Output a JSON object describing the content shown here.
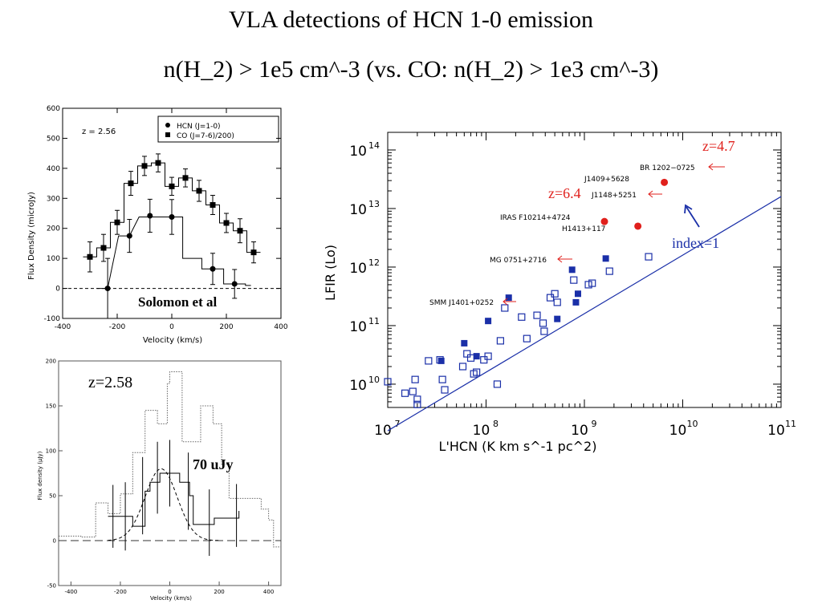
{
  "slide": {
    "title_line1": "VLA detections of HCN 1-0 emission",
    "title_line2": "n(H_2) > 1e5 cm^-3   (vs. CO:  n(H_2) > 1e3 cm^-3)"
  },
  "chart_data": [
    {
      "type": "line",
      "style": "histogram-steps with errorbars",
      "xlabel": "Velocity (km/s)",
      "ylabel": "Flux Density (microJy)",
      "xlim": [
        -400,
        400
      ],
      "ylim": [
        -100,
        600
      ],
      "x_ticks": [
        -400,
        -200,
        0,
        200,
        400
      ],
      "y_ticks": [
        -100,
        0,
        100,
        200,
        300,
        400,
        500,
        600
      ],
      "annotation": "z = 2.56",
      "overlay_text": "Solomon et al",
      "legend": {
        "placement": "top-right",
        "entries": [
          "HCN (J=1-0)",
          "CO (J=7-6)/200)"
        ]
      },
      "series": [
        {
          "name": "HCN (J=1-0)",
          "marker": "circle",
          "x": [
            -235,
            -155,
            -80,
            0,
            150,
            230
          ],
          "y": [
            0,
            175,
            242,
            238,
            65,
            15
          ],
          "err": [
            100,
            55,
            55,
            58,
            52,
            48
          ],
          "steps": [
            [
              -275,
              -235,
              0
            ],
            [
              -195,
              -155,
              175
            ],
            [
              -120,
              40,
              238
            ],
            [
              40,
              110,
              100
            ],
            [
              110,
              190,
              65
            ],
            [
              190,
              270,
              15
            ],
            [
              270,
              290,
              10
            ]
          ]
        },
        {
          "name": "CO (J=7-6)/200)",
          "marker": "square",
          "x": [
            -300,
            -250,
            -200,
            -150,
            -100,
            -50,
            0,
            50,
            100,
            150,
            200,
            250,
            300
          ],
          "y": [
            105,
            135,
            220,
            350,
            408,
            418,
            340,
            368,
            325,
            278,
            218,
            192,
            120
          ],
          "err": [
            50,
            45,
            40,
            40,
            32,
            30,
            30,
            30,
            35,
            32,
            32,
            40,
            35
          ]
        }
      ]
    },
    {
      "type": "line",
      "style": "histogram-steps with errorbars and gaussian fit",
      "xlabel": "Velocity (km/s)",
      "ylabel": "Flux density (μJy)",
      "xlim": [
        -450,
        450
      ],
      "ylim": [
        -50,
        200
      ],
      "x_ticks": [
        -400,
        -200,
        0,
        200,
        400
      ],
      "y_ticks": [
        -50,
        0,
        50,
        100,
        150,
        200
      ],
      "annotation": "z=2.58",
      "overlay_text": "70 uJy",
      "dotted_steps": [
        [
          -450,
          5
        ],
        [
          -360,
          4
        ],
        [
          -300,
          42
        ],
        [
          -250,
          30
        ],
        [
          -200,
          52
        ],
        [
          -150,
          98
        ],
        [
          -100,
          145
        ],
        [
          -50,
          130
        ],
        [
          -10,
          175
        ],
        [
          0,
          188
        ],
        [
          50,
          110
        ],
        [
          80,
          110
        ],
        [
          125,
          150
        ],
        [
          175,
          130
        ],
        [
          210,
          85
        ],
        [
          240,
          47
        ],
        [
          320,
          47
        ],
        [
          370,
          35
        ],
        [
          400,
          23
        ],
        [
          420,
          -7
        ],
        [
          450,
          -7
        ]
      ],
      "solid_steps": [
        [
          -250,
          27
        ],
        [
          -180,
          27
        ],
        [
          -150,
          16
        ],
        [
          -100,
          55
        ],
        [
          -80,
          65
        ],
        [
          -40,
          75
        ],
        [
          0,
          75
        ],
        [
          40,
          65
        ],
        [
          80,
          50
        ],
        [
          95,
          18
        ],
        [
          135,
          18
        ],
        [
          180,
          25
        ],
        [
          240,
          25
        ],
        [
          280,
          33
        ]
      ],
      "errorbars": [
        {
          "x": -230,
          "y": 27,
          "err": 35
        },
        {
          "x": -180,
          "y": 27,
          "err": 38
        },
        {
          "x": -110,
          "y": 50,
          "err": 43
        },
        {
          "x": -50,
          "y": 70,
          "err": 40
        },
        {
          "x": 0,
          "y": 75,
          "err": 37
        },
        {
          "x": 75,
          "y": 55,
          "err": 43
        },
        {
          "x": 160,
          "y": 20,
          "err": 37
        },
        {
          "x": 270,
          "y": 28,
          "err": 35
        }
      ],
      "gaussian": {
        "amplitude": 80,
        "center": -35,
        "sigma": 65
      }
    },
    {
      "type": "scatter",
      "xlabel": "L'HCN (K km s^-1 pc^2)",
      "ylabel": "LFIR (Lo)",
      "x_log": true,
      "y_log": true,
      "xlim": [
        10000000.0,
        100000000000.0
      ],
      "ylim": [
        4000000000.0,
        200000000000000.0
      ],
      "x_tick_exponents": [
        7,
        8,
        9,
        10,
        11
      ],
      "y_tick_exponents": [
        10,
        11,
        12,
        13,
        14
      ],
      "fit_line": {
        "label": "index=1",
        "from": [
          10000000.0,
          1600000000.0
        ],
        "to": [
          100000000000.0,
          16000000000000.0
        ]
      },
      "series": [
        {
          "marker": "open-square",
          "color": "#1a2fa8",
          "x": [
            10000000.0,
            15000000.0,
            18000000.0,
            19000000.0,
            20000000.0,
            20000000.0,
            26000000.0,
            34000000.0,
            36000000.0,
            38000000.0,
            58000000.0,
            64000000.0,
            70000000.0,
            75000000.0,
            80000000.0,
            95000000.0,
            105000000.0,
            130000000.0,
            140000000.0,
            155000000.0,
            230000000.0,
            260000000.0,
            330000000.0,
            380000000.0,
            390000000.0,
            450000000.0,
            500000000.0,
            530000000.0,
            780000000.0,
            1100000000.0,
            1200000000.0,
            1800000000.0,
            4500000000.0
          ],
          "y": [
            11000000000.0,
            7000000000.0,
            7500000000.0,
            12000000000.0,
            5500000000.0,
            4500000000.0,
            25000000000.0,
            26000000000.0,
            12000000000.0,
            8000000000.0,
            20000000000.0,
            33000000000.0,
            28000000000.0,
            15000000000.0,
            16000000000.0,
            26000000000.0,
            30000000000.0,
            10000000000.0,
            55000000000.0,
            200000000000.0,
            140000000000.0,
            60000000000.0,
            150000000000.0,
            110000000000.0,
            80000000000.0,
            300000000000.0,
            350000000000.0,
            250000000000.0,
            600000000000.0,
            500000000000.0,
            530000000000.0,
            850000000000.0,
            1500000000000.0
          ]
        },
        {
          "marker": "filled-square",
          "color": "#1a2fa8",
          "x": [
            35000000.0,
            60000000.0,
            80000000.0,
            105000000.0,
            170000000.0,
            530000000.0,
            750000000.0,
            820000000.0,
            860000000.0,
            1650000000.0
          ],
          "y": [
            25000000000.0,
            50000000000.0,
            30000000000.0,
            120000000000.0,
            300000000000.0,
            130000000000.0,
            900000000000.0,
            250000000000.0,
            350000000000.0,
            1400000000000.0
          ]
        },
        {
          "marker": "filled-circle",
          "color": "#e0201c",
          "x": [
            6500000000.0,
            1600000000.0,
            3500000000.0
          ],
          "y": [
            28000000000000.0,
            6000000000000.0,
            5000000000000.0
          ]
        }
      ],
      "point_labels": [
        "BR 1202−0725",
        "J1409+5628",
        "J1148+5251",
        "IRAS F10214+4724",
        "H1413+117",
        "MG 0751+2716",
        "SMM J1401+0252"
      ],
      "annotations": [
        "z=4.7",
        "z=6.4"
      ]
    }
  ]
}
